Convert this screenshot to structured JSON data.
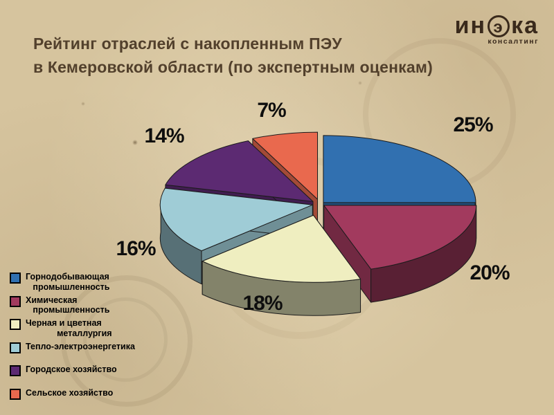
{
  "slide": {
    "title_line1": "Рейтинг отраслей с накопленным ПЭУ",
    "title_line2": "в Кемеровской области (по экспертным оценкам)"
  },
  "logo": {
    "text_left": "ин",
    "text_circle": "э",
    "text_right": "ка",
    "subtitle": "консалтинг"
  },
  "theme": {
    "background": "#d6c49e",
    "title_color": "#52402c",
    "logo_color": "#3a2a1c",
    "label_color": "#0e0e0e"
  },
  "chart_data": {
    "type": "pie",
    "effect": "3d-exploded",
    "title": "Рейтинг отраслей с накопленным ПЭУ в Кемеровской области (по экспертным оценкам)",
    "legend_position": "bottom-left",
    "slices": [
      {
        "label": "Горнодобывающая промышленность",
        "value": 25,
        "color": "#3170b0",
        "legend_text": "Горнодобывающая\n   промышленность"
      },
      {
        "label": "Химическая промышленность",
        "value": 20,
        "color": "#a23a5e",
        "legend_text": "Химическая\n   промышленность"
      },
      {
        "label": "Черная и цветная металлургия",
        "value": 18,
        "color": "#efeec0",
        "legend_text": "Черная и цветная\n             металлургия"
      },
      {
        "label": "Тепло-электроэнергетика",
        "value": 16,
        "color": "#9fccd6",
        "legend_text": "Тепло-электроэнергетика"
      },
      {
        "label": "Городское хозяйство",
        "value": 14,
        "color": "#5c2a72",
        "legend_text": "Городское хозяйство"
      },
      {
        "label": "Сельское хозяйство",
        "value": 7,
        "color": "#e9694e",
        "legend_text": "Сельское хозяйство"
      }
    ]
  }
}
